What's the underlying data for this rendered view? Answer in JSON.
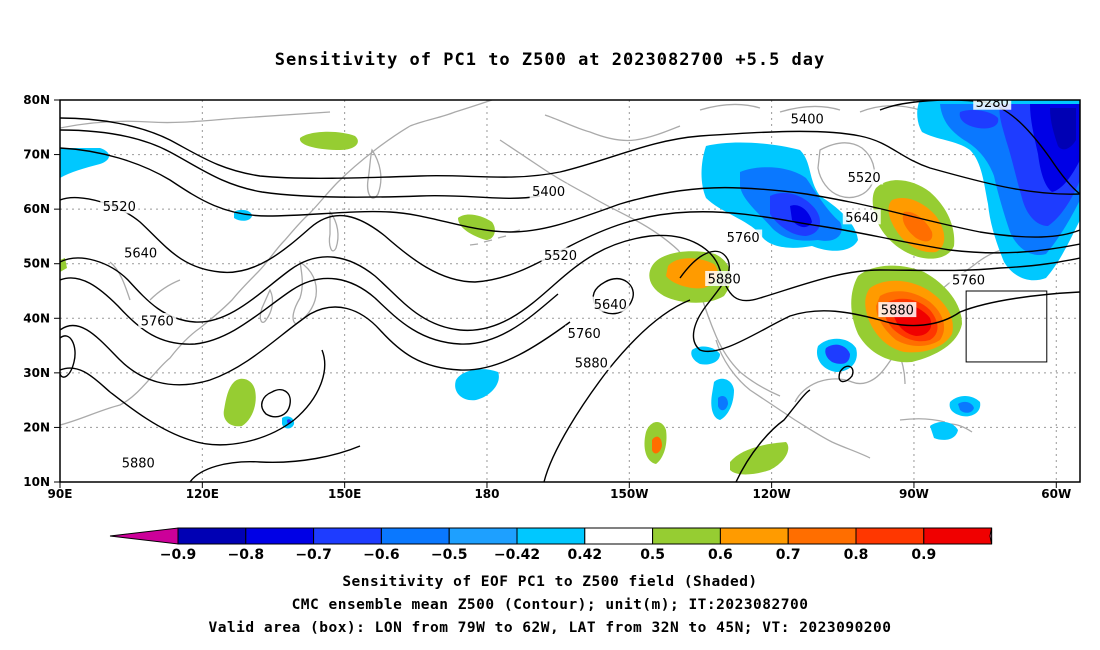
{
  "title": "Sensitivity of PC1 to Z500 at 2023082700 +5.5 day",
  "lat_labels": [
    "80N",
    "70N",
    "60N",
    "50N",
    "40N",
    "30N",
    "20N",
    "10N"
  ],
  "lon_labels": [
    "90E",
    "120E",
    "150E",
    "180",
    "150W",
    "120W",
    "90W",
    "60W"
  ],
  "contour_labels": [
    {
      "text": "5280",
      "lon": -73.5,
      "lat": 79.5
    },
    {
      "text": "5400",
      "lon": -112.5,
      "lat": 76.5
    },
    {
      "text": "5400",
      "lon": -167.0,
      "lat": 63.2
    },
    {
      "text": "5520",
      "lon": -100.5,
      "lat": 65.8
    },
    {
      "text": "5520",
      "lon": 102.5,
      "lat": 60.5
    },
    {
      "text": "5520",
      "lon": -164.5,
      "lat": 51.5
    },
    {
      "text": "5640",
      "lon": -101.0,
      "lat": 58.5
    },
    {
      "text": "5640",
      "lon": 107.0,
      "lat": 52.0
    },
    {
      "text": "5640",
      "lon": -154.0,
      "lat": 42.5
    },
    {
      "text": "5760",
      "lon": -126.0,
      "lat": 54.8
    },
    {
      "text": "5760",
      "lon": -78.5,
      "lat": 47.0
    },
    {
      "text": "5760",
      "lon": -159.5,
      "lat": 37.2
    },
    {
      "text": "5760",
      "lon": 110.5,
      "lat": 39.5
    },
    {
      "text": "5880",
      "lon": -130.0,
      "lat": 47.2
    },
    {
      "text": "5880",
      "lon": -93.5,
      "lat": 41.5
    },
    {
      "text": "5880",
      "lon": -158.0,
      "lat": 31.8
    },
    {
      "text": "5880",
      "lon": 106.5,
      "lat": 13.5
    }
  ],
  "valid_box": {
    "lon_w": -79,
    "lon_e": -62,
    "lat_s": 32,
    "lat_n": 45
  },
  "colorbar": {
    "labels": [
      "−0.9",
      "−0.8",
      "−0.7",
      "−0.6",
      "−0.5",
      "−0.42",
      "0.42",
      "0.5",
      "0.6",
      "0.7",
      "0.8",
      "0.9"
    ],
    "colors": [
      "#cc0099",
      "#0000b4",
      "#0000e6",
      "#1e3cff",
      "#0a78ff",
      "#1ea0ff",
      "#00c8ff",
      "#ffffff",
      "#96cd32",
      "#ff9b00",
      "#ff6e00",
      "#ff3700",
      "#f00000",
      "#ff96c8"
    ]
  },
  "footer": {
    "line1": "Sensitivity of EOF PC1 to Z500 field (Shaded)",
    "line2": "CMC ensemble mean Z500 (Contour); unit(m); IT:2023082700",
    "line3": "Valid area (box): LON from 79W to 62W, LAT from 32N to 45N; VT: 2023090200"
  }
}
